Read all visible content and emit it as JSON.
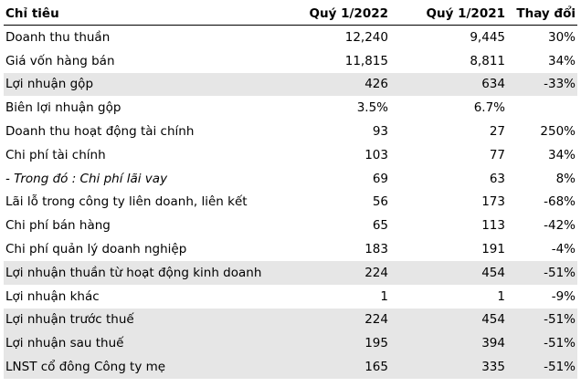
{
  "table": {
    "header": [
      "Chỉ tiêu",
      "Quý 1/2022",
      "Quý 1/2021",
      "Thay đổi"
    ],
    "rows": [
      [
        "Doanh thu thuần",
        "12,240",
        "9,445",
        "30%"
      ],
      [
        "Giá vốn hàng bán",
        "11,815",
        "8,811",
        "34%"
      ],
      [
        "Lợi nhuận gộp",
        "426",
        "634",
        "-33%"
      ],
      [
        "Biên lợi nhuận gộp",
        "3.5%",
        "6.7%"
      ],
      [
        "Doanh thu hoạt động tài chính",
        "93",
        "27",
        "250%"
      ],
      [
        "Chi phí tài chính",
        "103",
        "77",
        "34%"
      ],
      [
        " - Trong đó : Chi phí lãi vay",
        "69",
        "63",
        "8%"
      ],
      [
        "Lãi lỗ trong công ty liên doanh, liên kết",
        "56",
        "173",
        "-68%"
      ],
      [
        "Chi phí bán hàng",
        "65",
        "113",
        "-42%"
      ],
      [
        "Chi phí quản lý doanh nghiệp",
        "183",
        "191",
        "-4%"
      ],
      [
        "Lợi nhuận thuần từ hoạt động kinh doanh",
        "224",
        "454",
        "-51%"
      ],
      [
        "Lợi nhuận khác",
        "1",
        "1",
        "-9%"
      ],
      [
        "Lợi nhuận trước thuế",
        "224",
        "454",
        "-51%"
      ],
      [
        "Lợi nhuận sau thuế",
        "195",
        "394",
        "-51%"
      ],
      [
        "LNST cổ đông Công ty mẹ",
        "165",
        "335",
        "-51%"
      ]
    ]
  }
}
